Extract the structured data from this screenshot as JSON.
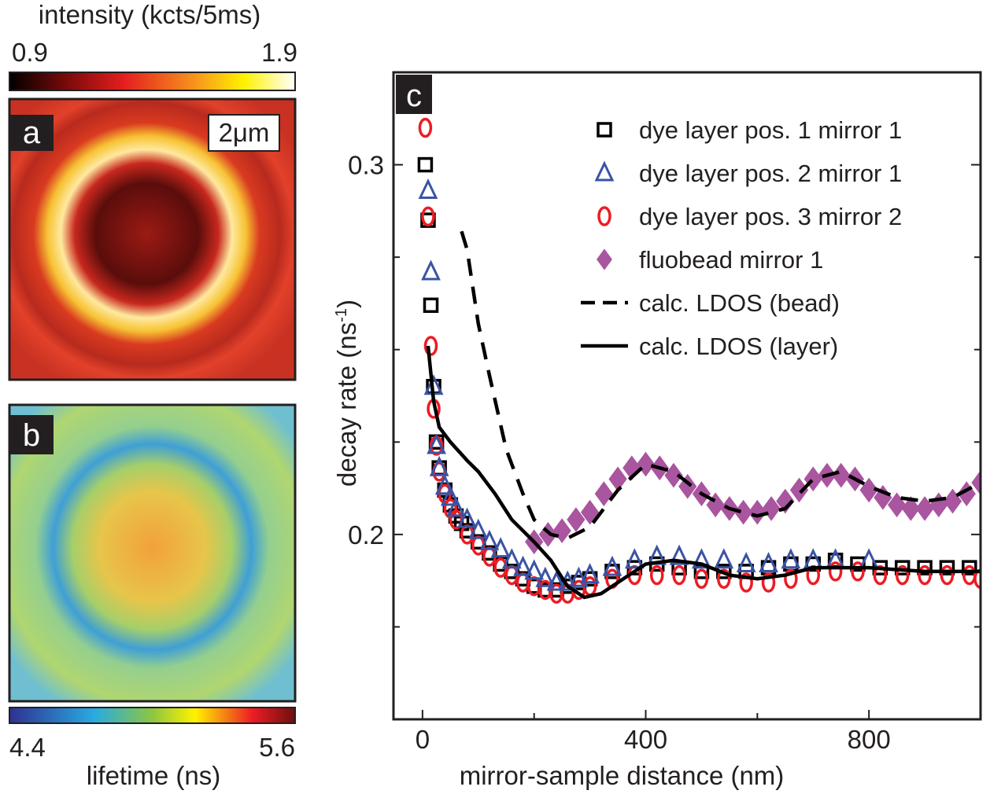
{
  "chart_data": {
    "type": "scatter",
    "panel_label": "c",
    "x_label": "mirror-sample distance (nm)",
    "y_label": "decay rate (ns",
    "y_label_sup": "-1",
    "y_label_end": ")",
    "xlim": [
      -52,
      1000
    ],
    "ylim": [
      0.15,
      0.325
    ],
    "xticks": [
      0,
      400,
      800
    ],
    "xminor": [
      200,
      600
    ],
    "yticks": [
      0.2,
      0.3
    ],
    "yminor": [
      0.175,
      0.225,
      0.25,
      0.275
    ],
    "series": [
      {
        "name": "dye layer pos. 1 mirror 1",
        "color": "#000000",
        "marker": "square",
        "x": [
          5,
          10,
          15,
          20,
          25,
          30,
          40,
          50,
          60,
          70,
          80,
          100,
          120,
          140,
          160,
          180,
          200,
          220,
          240,
          260,
          280,
          300,
          340,
          380,
          420,
          460,
          500,
          540,
          580,
          620,
          660,
          700,
          740,
          780,
          820,
          860,
          900,
          940,
          980
        ],
        "values": [
          0.3,
          0.285,
          0.262,
          0.24,
          0.225,
          0.218,
          0.212,
          0.208,
          0.205,
          0.203,
          0.201,
          0.198,
          0.195,
          0.192,
          0.19,
          0.188,
          0.186,
          0.185,
          0.185,
          0.186,
          0.187,
          0.188,
          0.19,
          0.191,
          0.192,
          0.191,
          0.19,
          0.19,
          0.19,
          0.191,
          0.192,
          0.192,
          0.193,
          0.192,
          0.191,
          0.191,
          0.191,
          0.191,
          0.191
        ]
      },
      {
        "name": "dye layer pos. 3 mirror 2",
        "color": "#ed1c24",
        "marker": "circle",
        "x": [
          5,
          10,
          15,
          20,
          25,
          30,
          40,
          50,
          60,
          80,
          100,
          120,
          140,
          160,
          180,
          200,
          220,
          240,
          260,
          280,
          300,
          340,
          380,
          420,
          460,
          500,
          540,
          580,
          620,
          660,
          700,
          740,
          780,
          820,
          860,
          900,
          940,
          980,
          1000
        ],
        "values": [
          0.31,
          0.286,
          0.251,
          0.234,
          0.224,
          0.217,
          0.211,
          0.207,
          0.204,
          0.2,
          0.197,
          0.194,
          0.191,
          0.189,
          0.187,
          0.186,
          0.185,
          0.184,
          0.184,
          0.185,
          0.186,
          0.188,
          0.189,
          0.189,
          0.189,
          0.188,
          0.188,
          0.187,
          0.187,
          0.188,
          0.189,
          0.19,
          0.19,
          0.189,
          0.189,
          0.189,
          0.189,
          0.189,
          0.188
        ]
      },
      {
        "name": "dye layer pos. 2 mirror 1",
        "color": "#3a53a4",
        "marker": "triangle",
        "x": [
          10,
          15,
          20,
          25,
          30,
          40,
          50,
          60,
          80,
          100,
          120,
          140,
          160,
          180,
          200,
          220,
          240,
          260,
          280,
          300,
          340,
          380,
          420,
          460,
          500,
          540,
          580,
          620,
          660,
          700,
          740,
          800
        ],
        "values": [
          0.293,
          0.271,
          0.24,
          0.224,
          0.218,
          0.213,
          0.21,
          0.207,
          0.204,
          0.201,
          0.198,
          0.196,
          0.193,
          0.191,
          0.19,
          0.188,
          0.187,
          0.187,
          0.188,
          0.189,
          0.191,
          0.193,
          0.194,
          0.194,
          0.193,
          0.193,
          0.192,
          0.192,
          0.193,
          0.193,
          0.193,
          0.193
        ]
      },
      {
        "name": "fluobead mirror 1",
        "color": "#a9559f",
        "marker": "diamond",
        "x": [
          200,
          225,
          250,
          275,
          300,
          325,
          350,
          375,
          400,
          425,
          450,
          475,
          500,
          525,
          550,
          575,
          600,
          625,
          650,
          675,
          700,
          725,
          750,
          775,
          800,
          825,
          850,
          875,
          900,
          925,
          950,
          975,
          1000
        ],
        "values": [
          0.198,
          0.2,
          0.201,
          0.204,
          0.206,
          0.211,
          0.215,
          0.218,
          0.219,
          0.218,
          0.216,
          0.213,
          0.211,
          0.208,
          0.207,
          0.206,
          0.206,
          0.207,
          0.209,
          0.212,
          0.215,
          0.216,
          0.216,
          0.215,
          0.212,
          0.21,
          0.208,
          0.207,
          0.207,
          0.208,
          0.209,
          0.211,
          0.214
        ]
      },
      {
        "name": "calc. LDOS (bead)",
        "color": "#000000",
        "marker": "dashed",
        "x": [
          70,
          80,
          100,
          120,
          150,
          180,
          200,
          230,
          260,
          300,
          350,
          400,
          450,
          500,
          550,
          600,
          650,
          700,
          750,
          800,
          850,
          900,
          950,
          1000
        ],
        "values": [
          0.282,
          0.277,
          0.257,
          0.243,
          0.223,
          0.211,
          0.204,
          0.2,
          0.199,
          0.202,
          0.212,
          0.219,
          0.217,
          0.211,
          0.207,
          0.205,
          0.207,
          0.215,
          0.217,
          0.213,
          0.21,
          0.209,
          0.21,
          0.214
        ]
      },
      {
        "name": "calc. LDOS (layer)",
        "color": "#000000",
        "marker": "solid",
        "x": [
          10,
          20,
          30,
          50,
          80,
          100,
          130,
          160,
          200,
          230,
          260,
          290,
          320,
          360,
          400,
          450,
          500,
          550,
          600,
          650,
          700,
          750,
          800,
          900,
          1000
        ],
        "values": [
          0.251,
          0.236,
          0.229,
          0.225,
          0.22,
          0.217,
          0.211,
          0.204,
          0.198,
          0.193,
          0.186,
          0.183,
          0.184,
          0.188,
          0.192,
          0.193,
          0.192,
          0.189,
          0.188,
          0.189,
          0.191,
          0.191,
          0.191,
          0.19,
          0.19
        ]
      }
    ]
  },
  "panels": {
    "intensity_label": "intensity (kcts/5ms)",
    "intensity_min": "0.9",
    "intensity_max": "1.9",
    "label_a": "a",
    "scale_bar": "2μm",
    "label_b": "b",
    "lifetime_min": "4.4",
    "lifetime_max": "5.6",
    "lifetime_label": "lifetime (ns)"
  }
}
